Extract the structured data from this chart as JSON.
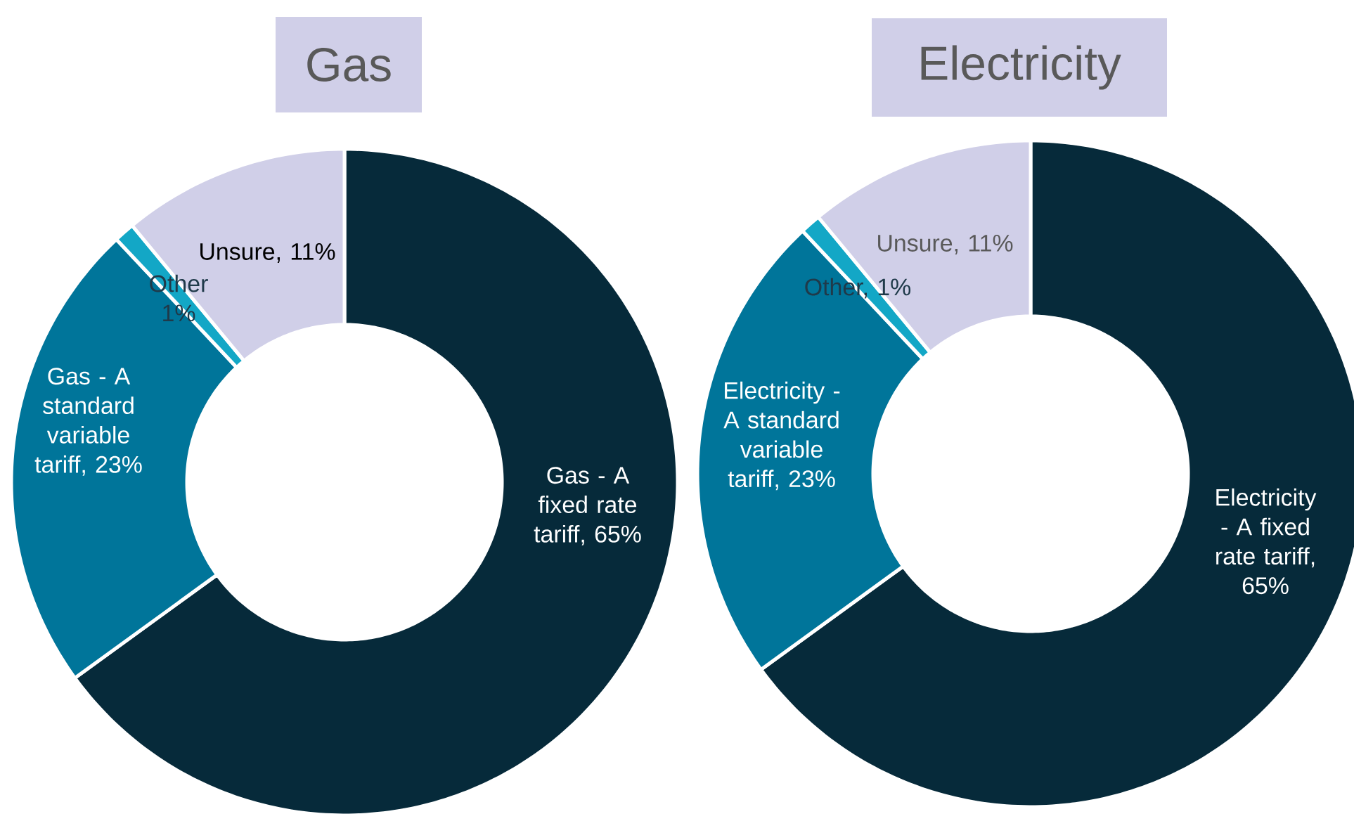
{
  "chart_data": [
    {
      "type": "donut",
      "title": "Gas",
      "categories": [
        null,
        null,
        null,
        null
      ],
      "values": [
        65,
        23,
        1,
        11
      ],
      "value_labels": [
        "Gas - A fixed rate tariff, 65%",
        "Gas - A standard variable tariff, 23%",
        "Other 1%",
        "Unsure, 11%"
      ],
      "colors": [
        "#062a3a",
        "#00759a",
        "#13a7c6",
        "#d0cfe8"
      ]
    },
    {
      "type": "donut",
      "title": "Electricity",
      "categories": [
        null,
        null,
        null,
        null
      ],
      "values": [
        65,
        23,
        1,
        11
      ],
      "value_labels": [
        "Electricity - A fixed rate tariff, 65%",
        "Electricity - A standard variable tariff, 23%",
        "Other, 1%",
        "Unsure, 11%"
      ],
      "colors": [
        "#062a3a",
        "#00759a",
        "#13a7c6",
        "#d0cfe8"
      ]
    }
  ]
}
